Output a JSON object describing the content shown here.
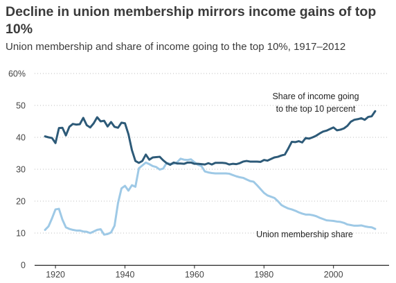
{
  "chart_data": {
    "type": "line",
    "title": "Decline in union membership mirrors income gains of top 10%",
    "subtitle": "Union membership and share of income going to the top 10%, 1917–2012",
    "xlabel": "",
    "ylabel": "",
    "xlim": [
      1914,
      2016
    ],
    "ylim": [
      0,
      60
    ],
    "x_ticks": [
      1920,
      1940,
      1960,
      1980,
      2000
    ],
    "y_ticks": [
      0,
      10,
      20,
      30,
      40,
      50,
      60
    ],
    "y_tick_labels": [
      "0",
      "10",
      "20",
      "30",
      "40",
      "50",
      "60%"
    ],
    "grid": "horizontal-dotted",
    "legend": "none",
    "series": [
      {
        "name": "Share of income going to the top 10 percent",
        "label_lines": [
          "Share of income going",
          "to the top 10 percent"
        ],
        "color": "#2d5a78",
        "x": [
          1917,
          1918,
          1919,
          1920,
          1921,
          1922,
          1923,
          1924,
          1925,
          1926,
          1927,
          1928,
          1929,
          1930,
          1931,
          1932,
          1933,
          1934,
          1935,
          1936,
          1937,
          1938,
          1939,
          1940,
          1941,
          1942,
          1943,
          1944,
          1945,
          1946,
          1947,
          1948,
          1949,
          1950,
          1951,
          1952,
          1953,
          1954,
          1955,
          1956,
          1957,
          1958,
          1959,
          1960,
          1961,
          1962,
          1963,
          1964,
          1965,
          1966,
          1967,
          1968,
          1969,
          1970,
          1971,
          1972,
          1973,
          1974,
          1975,
          1976,
          1977,
          1978,
          1979,
          1980,
          1981,
          1982,
          1983,
          1984,
          1985,
          1986,
          1987,
          1988,
          1989,
          1990,
          1991,
          1992,
          1993,
          1994,
          1995,
          1996,
          1997,
          1998,
          1999,
          2000,
          2001,
          2002,
          2003,
          2004,
          2005,
          2006,
          2007,
          2008,
          2009,
          2010,
          2011,
          2012
        ],
        "values": [
          40.3,
          40.0,
          39.8,
          38.2,
          42.9,
          43.0,
          40.6,
          43.3,
          44.2,
          44.0,
          44.1,
          46.1,
          43.8,
          43.1,
          44.4,
          46.3,
          45.0,
          45.2,
          43.4,
          44.8,
          43.3,
          43.0,
          44.6,
          44.4,
          41.0,
          36.0,
          32.6,
          32.0,
          32.6,
          34.6,
          33.0,
          33.7,
          33.8,
          33.9,
          32.8,
          31.9,
          31.4,
          32.1,
          31.8,
          31.8,
          31.7,
          32.1,
          32.1,
          31.7,
          31.7,
          31.6,
          31.5,
          31.9,
          31.5,
          32.0,
          32.0,
          32.0,
          31.9,
          31.5,
          31.7,
          31.6,
          31.9,
          32.4,
          32.6,
          32.4,
          32.4,
          32.4,
          32.3,
          32.9,
          32.7,
          33.2,
          33.7,
          33.9,
          34.3,
          34.6,
          36.5,
          38.6,
          38.5,
          38.8,
          38.4,
          39.8,
          39.6,
          40.0,
          40.5,
          41.2,
          41.8,
          42.1,
          42.6,
          43.1,
          42.2,
          42.4,
          42.8,
          43.6,
          44.9,
          45.5,
          45.7,
          46.0,
          45.5,
          46.4,
          46.6,
          48.2
        ]
      },
      {
        "name": "Union membership share",
        "label_lines": [
          "Union membership share"
        ],
        "color": "#9ec9e6",
        "x": [
          1917,
          1918,
          1919,
          1920,
          1921,
          1922,
          1923,
          1924,
          1925,
          1926,
          1927,
          1928,
          1929,
          1930,
          1931,
          1932,
          1933,
          1934,
          1935,
          1936,
          1937,
          1938,
          1939,
          1940,
          1941,
          1942,
          1943,
          1944,
          1945,
          1946,
          1947,
          1948,
          1949,
          1950,
          1951,
          1952,
          1953,
          1954,
          1955,
          1956,
          1957,
          1958,
          1959,
          1960,
          1961,
          1962,
          1963,
          1964,
          1965,
          1966,
          1967,
          1968,
          1969,
          1970,
          1971,
          1972,
          1973,
          1974,
          1975,
          1976,
          1977,
          1978,
          1979,
          1980,
          1981,
          1982,
          1983,
          1984,
          1985,
          1986,
          1987,
          1988,
          1989,
          1990,
          1991,
          1992,
          1993,
          1994,
          1995,
          1996,
          1997,
          1998,
          1999,
          2000,
          2001,
          2002,
          2003,
          2004,
          2005,
          2006,
          2007,
          2008,
          2009,
          2010,
          2011,
          2012
        ],
        "values": [
          11.0,
          12.1,
          14.6,
          17.4,
          17.6,
          14.2,
          11.8,
          11.3,
          11.0,
          10.8,
          10.8,
          10.5,
          10.4,
          10.0,
          10.5,
          11.0,
          11.2,
          9.5,
          9.7,
          10.2,
          12.3,
          19.4,
          24.0,
          24.8,
          23.3,
          25.0,
          24.5,
          30.3,
          31.2,
          32.1,
          31.6,
          31.0,
          30.7,
          29.9,
          30.2,
          32.0,
          31.7,
          31.7,
          32.2,
          33.3,
          33.0,
          32.9,
          33.1,
          32.2,
          31.4,
          31.0,
          29.3,
          29.0,
          28.8,
          28.7,
          28.7,
          28.7,
          28.7,
          28.6,
          28.2,
          27.8,
          27.5,
          27.3,
          26.8,
          26.3,
          26.1,
          25.0,
          23.8,
          22.6,
          21.8,
          21.4,
          21.0,
          20.0,
          18.8,
          18.2,
          17.7,
          17.4,
          17.0,
          16.5,
          16.1,
          15.8,
          15.8,
          15.6,
          15.3,
          14.8,
          14.4,
          14.0,
          13.9,
          13.8,
          13.6,
          13.5,
          13.2,
          12.7,
          12.5,
          12.3,
          12.3,
          12.4,
          12.1,
          11.9,
          11.8,
          11.3
        ]
      }
    ]
  }
}
